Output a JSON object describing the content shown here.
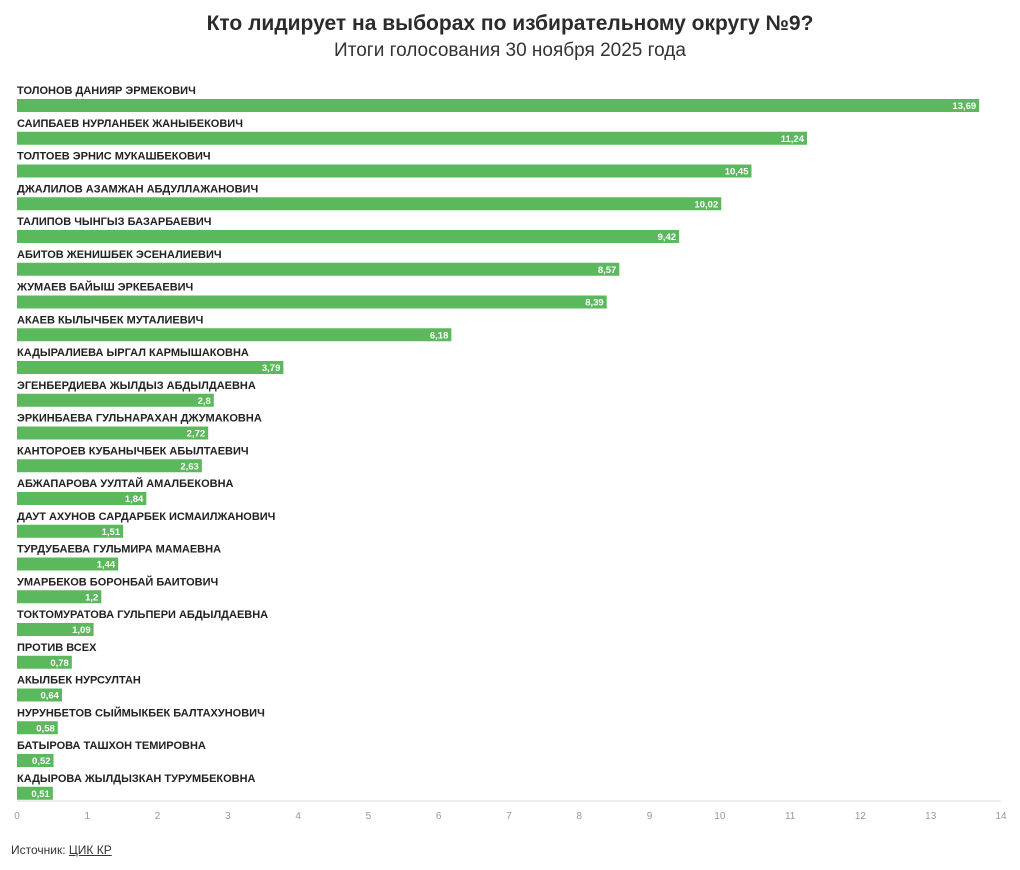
{
  "header": {
    "title": "Кто лидирует на выборах по избирательному округу №9?",
    "subtitle": "Итоги голосования 30 ноября 2025 года"
  },
  "source": {
    "prefix": "Источник:",
    "link_text": "ЦИК КР"
  },
  "colors": {
    "bar": "#5cb85c",
    "value_text": "#ffffff",
    "axis": "#dddddd",
    "tick_text": "#999999"
  },
  "chart_data": {
    "type": "bar",
    "orientation": "horizontal",
    "title": "Кто лидирует на выборах по избирательному округу №9?",
    "subtitle": "Итоги голосования 30 ноября 2025 года",
    "xlim": [
      0,
      14
    ],
    "x_ticks": [
      "0",
      "1",
      "2",
      "3",
      "4",
      "5",
      "6",
      "7",
      "8",
      "9",
      "10",
      "11",
      "12",
      "13",
      "14"
    ],
    "grid": false,
    "categories": [
      "ТОЛОНОВ ДАНИЯР ЭРМЕКОВИЧ",
      "САИПБАЕВ НУРЛАНБЕК ЖАНЫБЕКОВИЧ",
      "ТОЛТОЕВ ЭРНИС МУКАШБЕКОВИЧ",
      "ДЖАЛИЛОВ АЗАМЖАН АБДУЛЛАЖАНОВИЧ",
      "ТАЛИПОВ ЧЫНГЫЗ БАЗАРБАЕВИЧ",
      "АБИТОВ ЖЕНИШБЕК ЭСЕНАЛИЕВИЧ",
      "ЖУМАЕВ БАЙЫШ ЭРКЕБАЕВИЧ",
      "АКАЕВ КЫЛЫЧБЕК МУТАЛИЕВИЧ",
      "КАДЫРАЛИЕВА ЫРГАЛ КАРМЫШАКОВНА",
      "ЭГЕНБЕРДИЕВА ЖЫЛДЫЗ АБДЫЛДАЕВНА",
      "ЭРКИНБАЕВА ГУЛЬНАРАХАН ДЖУМАКОВНА",
      "КАНТОРОЕВ КУБАНЫЧБЕК АБЫЛТАЕВИЧ",
      "АБЖАПАРОВА УУЛТАЙ АМАЛБЕКОВНА",
      "ДАУТ АХУНОВ САРДАРБЕК ИСМАИЛЖАНОВИЧ",
      "ТУРДУБАЕВА ГУЛЬМИРА МАМАЕВНА",
      "УМАРБЕКОВ БОРОНБАЙ БАИТОВИЧ",
      "ТОКТОМУРАТОВА ГУЛЬПЕРИ АБДЫЛДАЕВНА",
      "ПРОТИВ ВСЕХ",
      "АКЫЛБЕК НУРСУЛТАН",
      "НУРУНБЕТОВ СЫЙМЫКБЕК БАЛТАХУНОВИЧ",
      "БАТЫРОВА ТАШХОН ТЕМИРОВНА",
      "КАДЫРОВА ЖЫЛДЫЗКАН ТУРУМБЕКОВНА"
    ],
    "values": [
      13.69,
      11.24,
      10.45,
      10.02,
      9.42,
      8.57,
      8.39,
      6.18,
      3.79,
      2.8,
      2.72,
      2.63,
      1.84,
      1.51,
      1.44,
      1.2,
      1.09,
      0.78,
      0.64,
      0.58,
      0.52,
      0.51
    ],
    "value_labels": [
      "13,69",
      "11,24",
      "10,45",
      "10,02",
      "9,42",
      "8,57",
      "8,39",
      "6,18",
      "3,79",
      "2,8",
      "2,72",
      "2,63",
      "1,84",
      "1,51",
      "1,44",
      "1,2",
      "1,09",
      "0,78",
      "0,64",
      "0,58",
      "0,52",
      "0,51"
    ]
  }
}
